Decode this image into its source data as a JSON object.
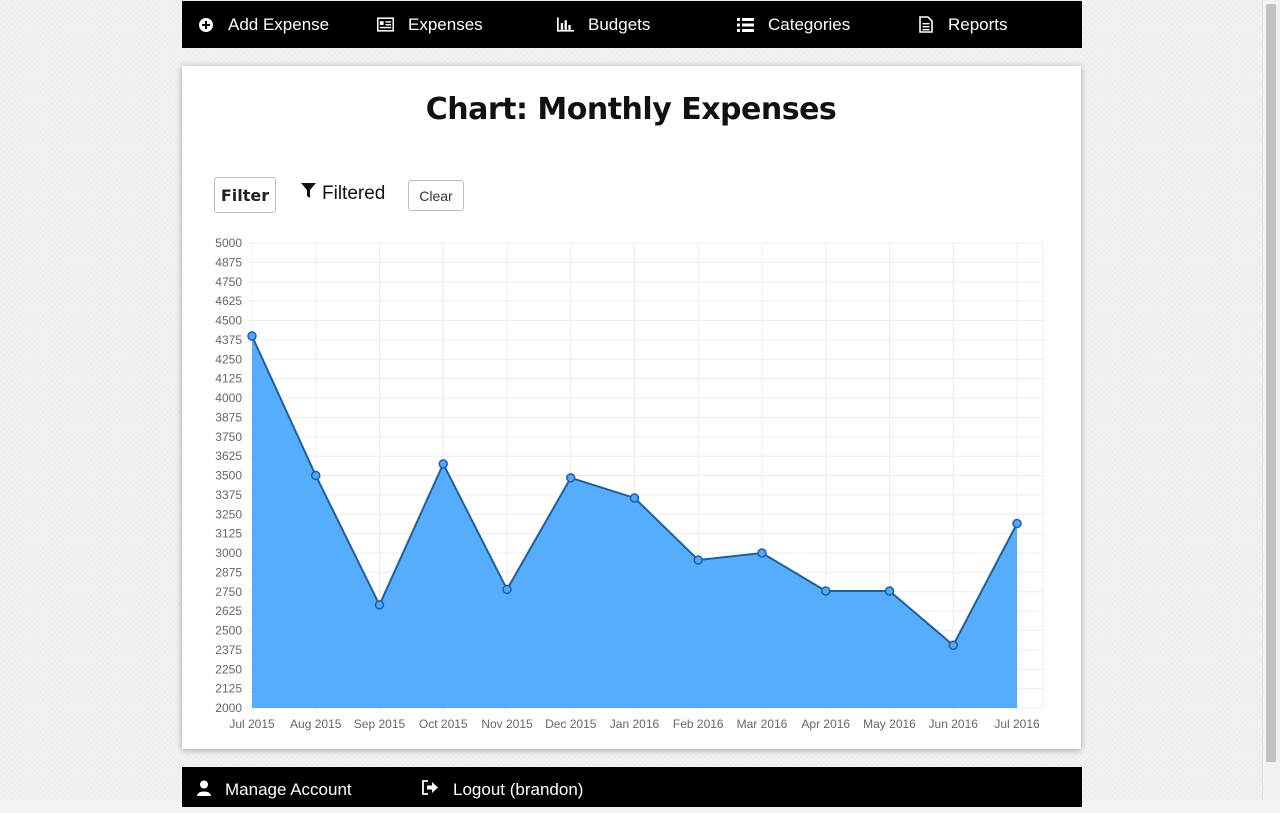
{
  "nav": {
    "items": [
      {
        "label": "Add Expense",
        "icon": "plus-circle-icon"
      },
      {
        "label": "Expenses",
        "icon": "list-card-icon"
      },
      {
        "label": "Budgets",
        "icon": "bar-chart-icon"
      },
      {
        "label": "Categories",
        "icon": "list-icon"
      },
      {
        "label": "Reports",
        "icon": "document-icon"
      }
    ]
  },
  "page": {
    "title": "Chart: Monthly Expenses"
  },
  "toolbar": {
    "filter_label": "Filter",
    "filtered_label": "Filtered",
    "clear_label": "Clear"
  },
  "footer": {
    "items": [
      {
        "label": "Manage Account",
        "icon": "user-icon"
      },
      {
        "label": "Logout (brandon)",
        "icon": "logout-icon"
      }
    ]
  },
  "colors": {
    "area_fill": "#4da9fb",
    "line": "#1d5fa3",
    "nav_bg": "#000000"
  },
  "chart_data": {
    "type": "area",
    "title": "",
    "categories": [
      "Jul 2015",
      "Aug 2015",
      "Sep 2015",
      "Oct 2015",
      "Nov 2015",
      "Dec 2015",
      "Jan 2016",
      "Feb 2016",
      "Mar 2016",
      "Apr 2016",
      "May 2016",
      "Jun 2016",
      "Jul 2016"
    ],
    "series": [
      {
        "values": [
          4400,
          3500,
          2665,
          3575,
          2765,
          3485,
          3355,
          2955,
          3000,
          2755,
          2755,
          2405,
          3190
        ]
      }
    ],
    "ylim": [
      2000,
      5000
    ],
    "yticks": [
      2000,
      2125,
      2250,
      2375,
      2500,
      2625,
      2750,
      2875,
      3000,
      3125,
      3250,
      3375,
      3500,
      3625,
      3750,
      3875,
      4000,
      4125,
      4250,
      4375,
      4500,
      4625,
      4750,
      4875,
      5000
    ],
    "grid": true,
    "legend": "none"
  }
}
